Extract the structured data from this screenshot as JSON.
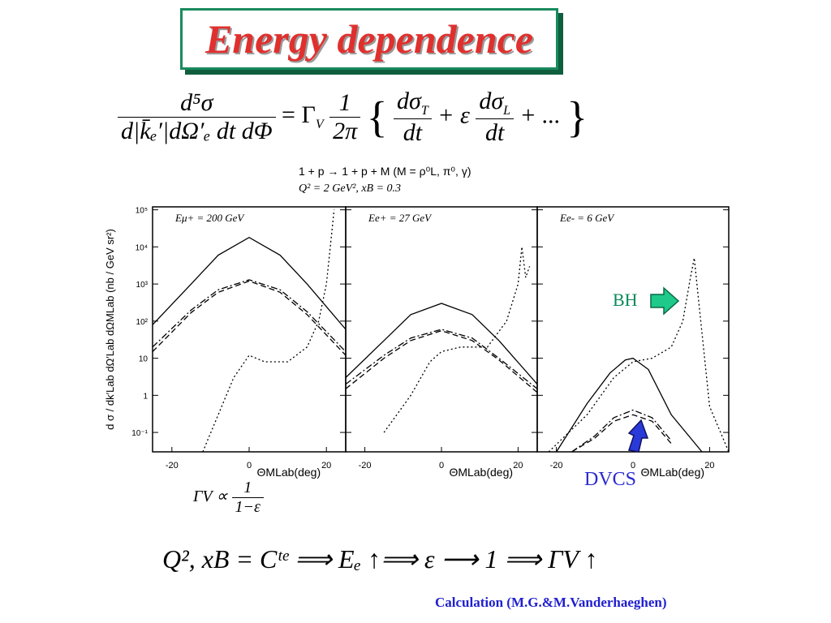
{
  "title": "Energy dependence",
  "formula_main": {
    "lhs_num": "d⁵σ",
    "lhs_den": "d|k̄ₑ′|dΩ′ₑ dt dΦ",
    "eq": "= Γ",
    "gamma_sub": "V",
    "pref_num": "1",
    "pref_den": "2π",
    "brace_open": "{",
    "t_num": "dσ",
    "t_sub": "T",
    "t_den": "dt",
    "plus_eps": "+ ε",
    "l_num": "dσ",
    "l_sub": "L",
    "l_den": "dt",
    "tail": "+ ...",
    "brace_close": "}"
  },
  "reaction": {
    "line1": "1 + p → 1 + p + M  (M = ρ⁰L, π⁰, γ)",
    "line2": "Q² = 2 GeV², xB = 0.3"
  },
  "gamma_relation": {
    "lhs": "ΓV ∝",
    "num": "1",
    "den": "1−ε"
  },
  "footer_equation": "Q², xB = Cᵗᵉ  ⟹   Eₑ ↑⟹ ε ⟶ 1 ⟹ ΓV ↑",
  "credit": "Calculation (M.G.&M.Vanderhaeghen)",
  "annotations": {
    "bh": "BH",
    "dvcs": "DVCS"
  },
  "colors": {
    "title": "#e0302e",
    "title_border": "#1a8a5e",
    "bh_arrow": "#1ec98a",
    "dvcs_arrow": "#2a3ad8",
    "credit": "#2020d0"
  },
  "chart_data": {
    "type": "line",
    "ylabel": "d σ / dk′Lab dΩ′Lab dΩMLab   (nb / GeV sr²)",
    "yscale": "log",
    "ylim": [
      0.03,
      120000
    ],
    "yticks": [
      "10⁻¹",
      "1",
      "10",
      "10²",
      "10³",
      "10⁴",
      "10⁵"
    ],
    "yticks_values": [
      0.1,
      1,
      10,
      100,
      1000,
      10000,
      100000
    ],
    "xlim": [
      -25,
      25
    ],
    "xticks": [
      "-20",
      "0",
      "20"
    ],
    "xticks_values": [
      -20,
      0,
      20
    ],
    "xlabel": "ΘMLab(deg)",
    "panels": [
      {
        "label": "Eμ+ = 200 GeV",
        "series": [
          {
            "style": "solid",
            "points": [
              [
                -25,
                80
              ],
              [
                -15,
                1000
              ],
              [
                -8,
                6000
              ],
              [
                0,
                18000
              ],
              [
                8,
                6000
              ],
              [
                15,
                1000
              ],
              [
                25,
                60
              ]
            ]
          },
          {
            "style": "dashdot",
            "points": [
              [
                -25,
                20
              ],
              [
                -15,
                200
              ],
              [
                -8,
                700
              ],
              [
                0,
                1300
              ],
              [
                8,
                700
              ],
              [
                15,
                180
              ],
              [
                25,
                15
              ]
            ]
          },
          {
            "style": "dashed",
            "points": [
              [
                -25,
                15
              ],
              [
                -15,
                170
              ],
              [
                -8,
                600
              ],
              [
                0,
                1200
              ],
              [
                8,
                600
              ],
              [
                15,
                150
              ],
              [
                25,
                12
              ]
            ]
          },
          {
            "style": "dotted",
            "points": [
              [
                -12,
                0.03
              ],
              [
                -8,
                0.3
              ],
              [
                -4,
                3
              ],
              [
                0,
                12
              ],
              [
                4,
                8
              ],
              [
                10,
                8
              ],
              [
                15,
                20
              ],
              [
                18,
                100
              ],
              [
                20,
                1000
              ],
              [
                21,
                10000
              ],
              [
                22,
                100000
              ]
            ]
          }
        ]
      },
      {
        "label": "Ee+ = 27 GeV",
        "series": [
          {
            "style": "solid",
            "points": [
              [
                -25,
                3
              ],
              [
                -15,
                30
              ],
              [
                -8,
                150
              ],
              [
                0,
                300
              ],
              [
                8,
                150
              ],
              [
                15,
                30
              ],
              [
                25,
                2
              ]
            ]
          },
          {
            "style": "dashdot",
            "points": [
              [
                -25,
                2
              ],
              [
                -15,
                12
              ],
              [
                -8,
                35
              ],
              [
                0,
                60
              ],
              [
                8,
                35
              ],
              [
                15,
                10
              ],
              [
                25,
                1.5
              ]
            ]
          },
          {
            "style": "dashed",
            "points": [
              [
                -25,
                1.5
              ],
              [
                -15,
                10
              ],
              [
                -8,
                30
              ],
              [
                0,
                55
              ],
              [
                8,
                30
              ],
              [
                15,
                9
              ],
              [
                25,
                1.2
              ]
            ]
          },
          {
            "style": "dotted",
            "points": [
              [
                -15,
                0.1
              ],
              [
                -8,
                1
              ],
              [
                -3,
                8
              ],
              [
                0,
                15
              ],
              [
                5,
                20
              ],
              [
                12,
                20
              ],
              [
                17,
                100
              ],
              [
                20,
                1000
              ],
              [
                21,
                10000
              ],
              [
                22,
                1500
              ],
              [
                23,
                3000
              ]
            ]
          }
        ]
      },
      {
        "label": "Ee- = 6 GeV",
        "series": [
          {
            "style": "solid",
            "points": [
              [
                -20,
                0.03
              ],
              [
                -12,
                0.6
              ],
              [
                -6,
                4
              ],
              [
                -2,
                9
              ],
              [
                0,
                10
              ],
              [
                4,
                5
              ],
              [
                10,
                0.3
              ],
              [
                18,
                0.03
              ]
            ]
          },
          {
            "style": "dashdot",
            "points": [
              [
                -16,
                0.03
              ],
              [
                -10,
                0.08
              ],
              [
                -5,
                0.25
              ],
              [
                0,
                0.4
              ],
              [
                5,
                0.25
              ],
              [
                10,
                0.06
              ]
            ]
          },
          {
            "style": "dashed",
            "points": [
              [
                -16,
                0.03
              ],
              [
                -10,
                0.07
              ],
              [
                -5,
                0.2
              ],
              [
                0,
                0.3
              ],
              [
                5,
                0.2
              ],
              [
                10,
                0.05
              ]
            ]
          },
          {
            "style": "dotted",
            "points": [
              [
                -22,
                0.03
              ],
              [
                -12,
                0.3
              ],
              [
                -5,
                3
              ],
              [
                0,
                8
              ],
              [
                5,
                10
              ],
              [
                10,
                20
              ],
              [
                13,
                100
              ],
              [
                15,
                1500
              ],
              [
                16,
                5000
              ],
              [
                17,
                500
              ],
              [
                20,
                0.5
              ],
              [
                25,
                0.03
              ]
            ]
          }
        ]
      }
    ]
  }
}
